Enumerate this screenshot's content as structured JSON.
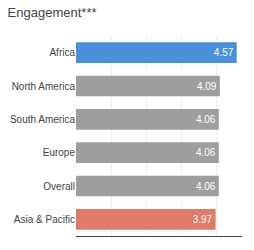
{
  "chart_data": {
    "type": "bar",
    "orientation": "horizontal",
    "title": "Engagement***",
    "categories": [
      "Asia & Pacific",
      "Overall",
      "Europe",
      "South America",
      "North America",
      "Africa"
    ],
    "values": [
      3.97,
      4.06,
      4.06,
      4.06,
      4.09,
      4.57
    ],
    "value_labels": [
      "3.97",
      "4.06",
      "4.06",
      "4.06",
      "4.09",
      "4.57"
    ],
    "colors": [
      "#e07b6a",
      "#9e9e9e",
      "#9e9e9e",
      "#9e9e9e",
      "#9e9e9e",
      "#4a90d9"
    ],
    "data_labels": true,
    "xlim": [
      0,
      4.72
    ],
    "xticks": [
      1,
      2,
      3,
      4
    ],
    "grid": true,
    "tick_labels": "y"
  }
}
